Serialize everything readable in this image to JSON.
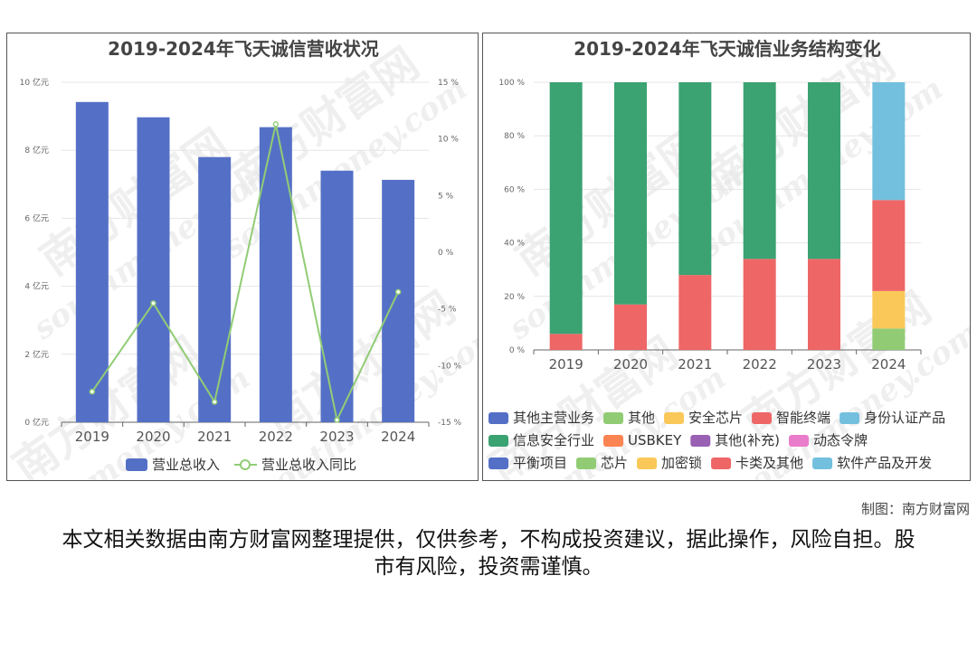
{
  "chart_data": [
    {
      "type": "bar",
      "title": "2019-2024年飞天诚信营收状况",
      "categories": [
        "2019",
        "2020",
        "2021",
        "2022",
        "2023",
        "2024"
      ],
      "series": [
        {
          "name": "营业总收入",
          "type": "bar",
          "values": [
            9.42,
            8.97,
            7.8,
            8.68,
            7.4,
            7.13
          ],
          "color": "#5470c6"
        },
        {
          "name": "营业总收入同比",
          "type": "line",
          "axis": "right",
          "values": [
            -12.3,
            -4.5,
            -13.2,
            11.3,
            -14.8,
            -3.5
          ],
          "color": "#91cc75"
        }
      ],
      "left_axis": {
        "min": 0,
        "max": 10,
        "ticks": [
          "0 亿元",
          "2 亿元",
          "4 亿元",
          "6 亿元",
          "8 亿元",
          "10 亿元"
        ]
      },
      "right_axis": {
        "min": -15,
        "max": 15,
        "ticks": [
          "-15 %",
          "-10 %",
          "-5 %",
          "0 %",
          "5 %",
          "10 %",
          "15 %"
        ]
      },
      "legend": [
        "营业总收入",
        "营业总收入同比"
      ],
      "legend_position": "bottom"
    },
    {
      "type": "bar",
      "stacked": true,
      "title": "2019-2024年飞天诚信业务结构变化",
      "categories": [
        "2019",
        "2020",
        "2021",
        "2022",
        "2023",
        "2024"
      ],
      "y_axis": {
        "min": 0,
        "max": 100,
        "ticks": [
          "0 %",
          "20 %",
          "40 %",
          "60 %",
          "80 %",
          "100 %"
        ]
      },
      "series": [
        {
          "name": "卡类及其他",
          "color": "#ee6666",
          "values": [
            6,
            17,
            28,
            34,
            34,
            0
          ]
        },
        {
          "name": "信息安全行业",
          "color": "#3ba272",
          "values": [
            94,
            83,
            72,
            66,
            66,
            0
          ]
        },
        {
          "name": "芯片",
          "color": "#91cc75",
          "values": [
            0,
            0,
            0,
            0,
            0,
            8
          ]
        },
        {
          "name": "加密锁",
          "color": "#fac858",
          "values": [
            0,
            0,
            0,
            0,
            0,
            14
          ]
        },
        {
          "name": "智能终端",
          "color": "#ee6666",
          "values": [
            0,
            0,
            0,
            0,
            0,
            34
          ]
        },
        {
          "name": "身份认证产品",
          "color": "#73c0de",
          "values": [
            0,
            0,
            0,
            0,
            0,
            44
          ]
        }
      ],
      "legend": [
        {
          "name": "其他主营业务",
          "color": "#5470c6"
        },
        {
          "name": "其他",
          "color": "#91cc75"
        },
        {
          "name": "安全芯片",
          "color": "#fac858"
        },
        {
          "name": "智能终端",
          "color": "#ee6666"
        },
        {
          "name": "身份认证产品",
          "color": "#73c0de"
        },
        {
          "name": "信息安全行业",
          "color": "#3ba272"
        },
        {
          "name": "USBKEY",
          "color": "#fc8452"
        },
        {
          "name": "其他(补充)",
          "color": "#9a60b4"
        },
        {
          "name": "动态令牌",
          "color": "#ea7ccc"
        },
        {
          "name": "平衡项目",
          "color": "#5470c6"
        },
        {
          "name": "芯片",
          "color": "#91cc75"
        },
        {
          "name": "加密锁",
          "color": "#fac858"
        },
        {
          "name": "卡类及其他",
          "color": "#ee6666"
        },
        {
          "name": "软件产品及开发",
          "color": "#73c0de"
        }
      ],
      "legend_position": "bottom"
    }
  ],
  "footer": {
    "credit": "制图：南方财富网",
    "disclaimer": "本文相关数据由南方财富网整理提供，仅供参考，不构成投资建议，据此操作，风险自担。股市有风险，投资需谨慎。"
  },
  "watermark": {
    "cn": "南方财富网",
    "en": "southmoney.com"
  }
}
